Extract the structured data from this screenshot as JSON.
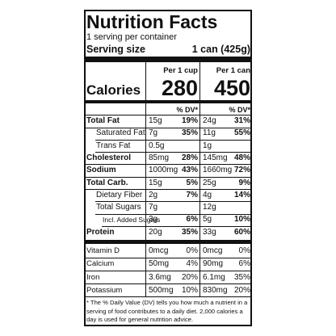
{
  "title": "Nutrition Facts",
  "servings": "1 serving per container",
  "serving_size": {
    "label": "Serving size",
    "value": "1 can (425g)"
  },
  "columns": [
    "Per 1 cup",
    "Per 1 can"
  ],
  "calories": {
    "label": "Calories",
    "values": [
      "280",
      "450"
    ]
  },
  "dv_header": "% DV*",
  "rows": [
    {
      "label": "Total Fat",
      "amounts": [
        "15g",
        "24g"
      ],
      "dv": [
        "19%",
        "31%"
      ]
    },
    {
      "label": "Saturated Fat",
      "amounts": [
        "7g",
        "11g"
      ],
      "dv": [
        "35%",
        "55%"
      ]
    },
    {
      "label": "Trans Fat",
      "amounts": [
        "0.5g",
        "1g"
      ]
    },
    {
      "label": "Cholesterol",
      "amounts": [
        "85mg",
        "145mg"
      ],
      "dv": [
        "28%",
        "48%"
      ]
    },
    {
      "label": "Sodium",
      "amounts": [
        "1000mg",
        "1660mg"
      ],
      "dv": [
        "43%",
        "72%"
      ]
    },
    {
      "label": "Total Carb.",
      "amounts": [
        "15g",
        "25g"
      ],
      "dv": [
        "5%",
        "9%"
      ]
    },
    {
      "label": "Dietary Fiber",
      "amounts": [
        "2g",
        "4g"
      ],
      "dv": [
        "7%",
        "14%"
      ]
    },
    {
      "label": "Total Sugars",
      "amounts": [
        "7g",
        "12g"
      ]
    },
    {
      "label": "Incl. Added Sugars",
      "amounts": [
        "3g",
        "5g"
      ],
      "dv": [
        "6%",
        "10%"
      ]
    },
    {
      "label": "Protein",
      "amounts": [
        "20g",
        "33g"
      ],
      "dv": [
        "35%",
        "60%"
      ]
    },
    {
      "label": "Vitamin D",
      "amounts": [
        "0mcg",
        "0mcg"
      ],
      "dv": [
        "0%",
        "0%"
      ]
    },
    {
      "label": "Calcium",
      "amounts": [
        "50mg",
        "90mg"
      ],
      "dv": [
        "4%",
        "6%"
      ]
    },
    {
      "label": "Iron",
      "amounts": [
        "3.6mg",
        "6.1mg"
      ],
      "dv": [
        "20%",
        "35%"
      ]
    },
    {
      "label": "Potassium",
      "amounts": [
        "500mg",
        "830mg"
      ],
      "dv": [
        "10%",
        "20%"
      ]
    }
  ],
  "footnote": "* The % Daily Value (DV) tells you how much a nutrient in a serving of food contributes to a daily diet. 2,000 calories a day is used for general nutrition advice."
}
